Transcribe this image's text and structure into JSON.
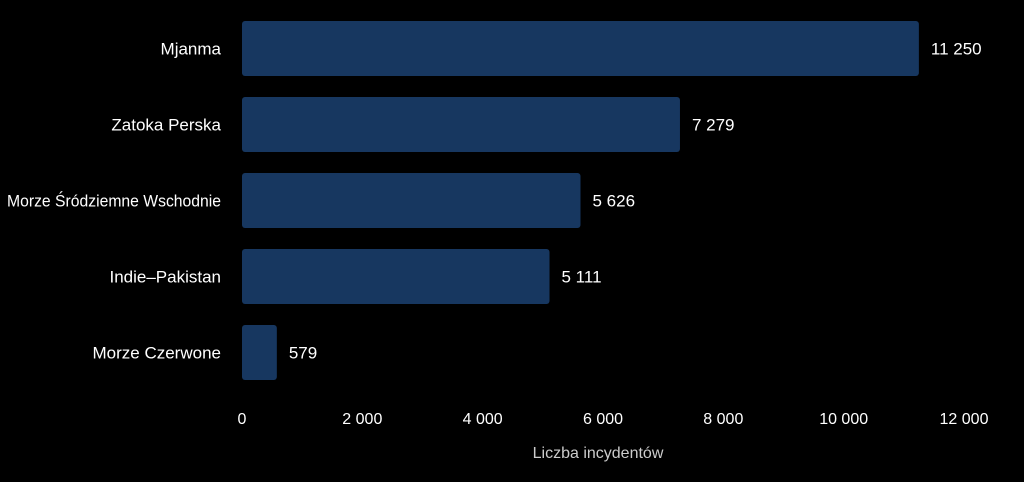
{
  "chart_data": {
    "type": "bar",
    "orientation": "horizontal",
    "categories": [
      "Mjanma",
      "Zatoka Perska",
      "Morze Śródziemne Wschodnie",
      "Indie–Pakistan",
      "Morze Czerwone"
    ],
    "values": [
      11250,
      7279,
      5626,
      5111,
      579
    ],
    "value_labels": [
      "11 250",
      "7 279",
      "5 626",
      "5 111",
      "579"
    ],
    "xlabel": "Liczba incydentów",
    "ylabel": "",
    "title": "",
    "xlim": [
      0,
      12000
    ],
    "xticks": [
      0,
      2000,
      4000,
      6000,
      8000,
      10000,
      12000
    ],
    "xtick_labels": [
      "0",
      "2 000",
      "4 000",
      "6 000",
      "8 000",
      "10 000",
      "12 000"
    ],
    "grid": false,
    "colors": {
      "bar": "#173760",
      "text": "#ffffff",
      "axis_label": "#cccccc",
      "background": "#000000"
    }
  }
}
